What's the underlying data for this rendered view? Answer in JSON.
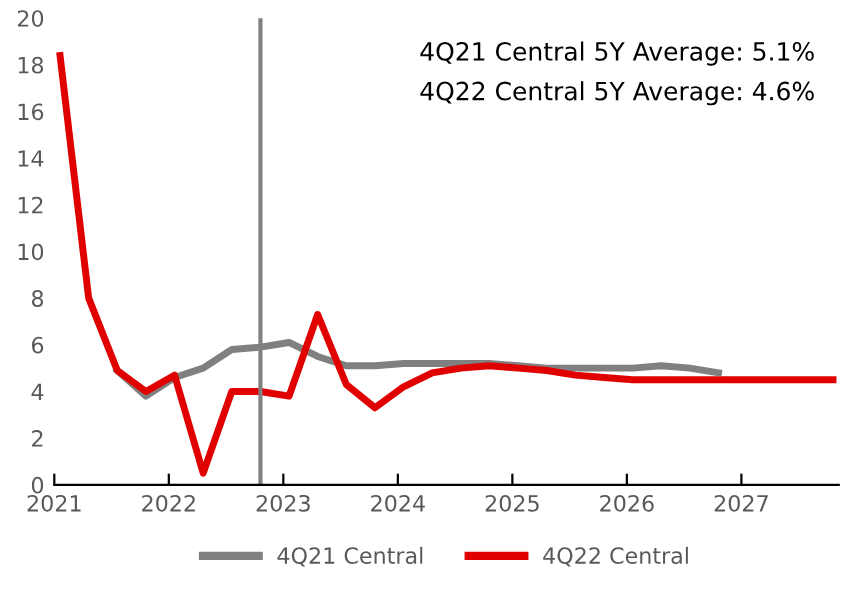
{
  "chart_data": {
    "type": "line",
    "x": [
      2021.05,
      2021.3,
      2021.55,
      2021.8,
      2022.05,
      2022.3,
      2022.55,
      2022.8,
      2023.05,
      2023.3,
      2023.55,
      2023.8,
      2024.05,
      2024.3,
      2024.55,
      2024.8,
      2025.05,
      2025.3,
      2025.55,
      2025.8,
      2026.05,
      2026.3,
      2026.55,
      2026.8,
      2027.05,
      2027.3,
      2027.55,
      2027.8
    ],
    "series": [
      {
        "name": "4Q21 Central",
        "color": "#808080",
        "values": [
          null,
          null,
          4.9,
          3.8,
          4.6,
          5.0,
          5.8,
          5.9,
          6.1,
          5.5,
          5.1,
          5.1,
          5.2,
          5.2,
          5.2,
          5.2,
          5.1,
          5.0,
          5.0,
          5.0,
          5.0,
          5.1,
          5.0,
          4.8,
          null,
          null,
          null,
          null
        ]
      },
      {
        "name": "4Q22 Central",
        "color": "#e00000",
        "values": [
          18.4,
          8.0,
          4.9,
          4.0,
          4.7,
          0.5,
          4.0,
          4.0,
          3.8,
          7.3,
          4.3,
          3.3,
          4.2,
          4.8,
          5.0,
          5.1,
          5.0,
          4.9,
          4.7,
          4.6,
          4.5,
          4.5,
          4.5,
          4.5,
          4.5,
          4.5,
          4.5,
          4.5
        ]
      }
    ],
    "xlim": [
      2021,
      2027.85
    ],
    "xticks": [
      2021,
      2022,
      2023,
      2024,
      2025,
      2026,
      2027
    ],
    "ylim": [
      0,
      20
    ],
    "yticks": [
      0,
      2,
      4,
      6,
      8,
      10,
      12,
      14,
      16,
      18,
      20
    ],
    "ref_lines": [
      {
        "axis": "x",
        "value": 2022.8,
        "color": "#808080"
      }
    ],
    "annotations": [
      "4Q21 Central 5Y Average: 5.1%",
      "4Q22 Central 5Y Average: 4.6%"
    ],
    "grid": false,
    "legend": "bottom",
    "marker": "none",
    "line_style": "solid"
  }
}
